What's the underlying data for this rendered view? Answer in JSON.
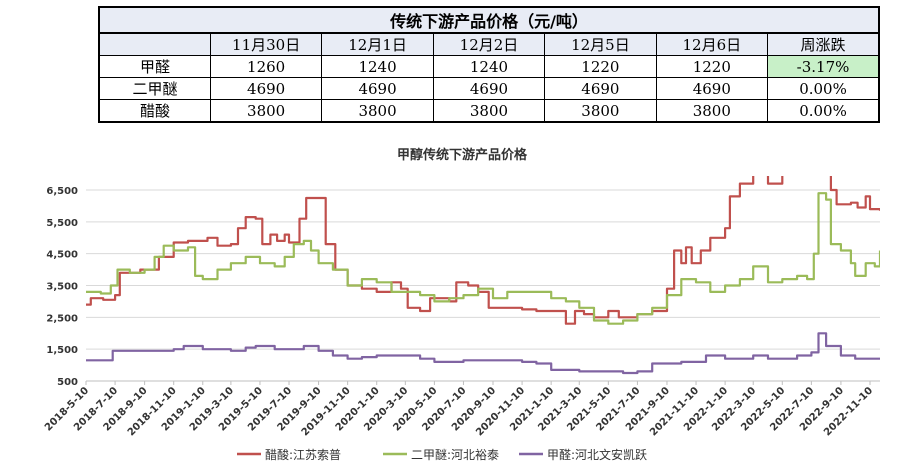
{
  "table": {
    "title": "传统下游产品价格（元/吨）",
    "header": [
      "",
      "11月30日",
      "12月1日",
      "12月2日",
      "12月5日",
      "12月6日",
      "周涨跌"
    ],
    "rows": [
      [
        "甲醛",
        "1260",
        "1240",
        "1240",
        "1220",
        "1220",
        "-3.17%"
      ],
      [
        "二甲醚",
        "4690",
        "4690",
        "4690",
        "4690",
        "4690",
        "0.00%"
      ],
      [
        "醋酸",
        "3800",
        "3800",
        "3800",
        "3800",
        "3800",
        "0.00%"
      ]
    ]
  },
  "chart_data": {
    "type": "line",
    "title": "甲醇传统下游产品价格",
    "ylim": [
      500,
      6500
    ],
    "yticks": [
      "500",
      "1,500",
      "2,500",
      "3,500",
      "4,500",
      "5,500",
      "6,500"
    ],
    "xlim": [
      "2018-05-10",
      "2022-12-01"
    ],
    "xticks": [
      "2018-5-10",
      "2018-7-10",
      "2018-9-10",
      "2018-11-10",
      "2019-1-10",
      "2019-3-10",
      "2019-5-10",
      "2019-7-10",
      "2019-9-10",
      "2019-11-10",
      "2020-1-10",
      "2020-3-10",
      "2020-5-10",
      "2020-7-10",
      "2020-9-10",
      "2020-11-10",
      "2021-1-10",
      "2021-3-10",
      "2021-5-10",
      "2021-7-10",
      "2021-9-10",
      "2021-11-10",
      "2022-1-10",
      "2022-3-10",
      "2022-5-10",
      "2022-7-10",
      "2022-9-10",
      "2022-11-10"
    ],
    "grid": "horizontal",
    "legend_position": "bottom",
    "series": [
      {
        "name": "醋酸:江苏索普",
        "color": "#c0504d",
        "points": [
          [
            "2018-05-10",
            2900
          ],
          [
            "2018-05-20",
            3100
          ],
          [
            "2018-06-15",
            3050
          ],
          [
            "2018-07-10",
            3200
          ],
          [
            "2018-07-20",
            3900
          ],
          [
            "2018-09-01",
            4000
          ],
          [
            "2018-10-10",
            4400
          ],
          [
            "2018-11-10",
            4850
          ],
          [
            "2018-12-10",
            4900
          ],
          [
            "2019-01-01",
            4900
          ],
          [
            "2019-01-20",
            5000
          ],
          [
            "2019-02-10",
            4750
          ],
          [
            "2019-03-10",
            4800
          ],
          [
            "2019-03-25",
            5300
          ],
          [
            "2019-04-10",
            5650
          ],
          [
            "2019-05-01",
            5600
          ],
          [
            "2019-05-15",
            4800
          ],
          [
            "2019-06-01",
            5100
          ],
          [
            "2019-06-15",
            4900
          ],
          [
            "2019-07-01",
            5100
          ],
          [
            "2019-07-10",
            4850
          ],
          [
            "2019-08-01",
            5600
          ],
          [
            "2019-08-15",
            6250
          ],
          [
            "2019-09-20",
            6250
          ],
          [
            "2019-09-25",
            4800
          ],
          [
            "2019-10-15",
            4000
          ],
          [
            "2019-11-10",
            3500
          ],
          [
            "2019-12-10",
            3400
          ],
          [
            "2020-01-10",
            3300
          ],
          [
            "2020-02-10",
            3600
          ],
          [
            "2020-03-01",
            3400
          ],
          [
            "2020-03-15",
            2800
          ],
          [
            "2020-04-10",
            2700
          ],
          [
            "2020-05-01",
            3100
          ],
          [
            "2020-06-10",
            3000
          ],
          [
            "2020-06-25",
            3600
          ],
          [
            "2020-07-20",
            3500
          ],
          [
            "2020-08-10",
            3300
          ],
          [
            "2020-09-01",
            2800
          ],
          [
            "2020-10-10",
            2800
          ],
          [
            "2020-11-10",
            2750
          ],
          [
            "2020-12-10",
            2700
          ],
          [
            "2021-01-10",
            2700
          ],
          [
            "2021-02-10",
            2300
          ],
          [
            "2021-03-01",
            2700
          ],
          [
            "2021-03-20",
            2600
          ],
          [
            "2021-04-10",
            2500
          ],
          [
            "2021-05-10",
            2700
          ],
          [
            "2021-06-01",
            2500
          ],
          [
            "2021-07-10",
            2600
          ],
          [
            "2021-08-10",
            2700
          ],
          [
            "2021-09-10",
            3400
          ],
          [
            "2021-09-25",
            4600
          ],
          [
            "2021-10-10",
            4200
          ],
          [
            "2021-10-20",
            4700
          ],
          [
            "2021-11-01",
            4200
          ],
          [
            "2021-11-20",
            4600
          ],
          [
            "2021-12-10",
            5000
          ],
          [
            "2022-01-10",
            5300
          ],
          [
            "2022-01-20",
            6300
          ],
          [
            "2022-02-10",
            6700
          ],
          [
            "2022-03-10",
            7000
          ],
          [
            "2022-04-10",
            6700
          ],
          [
            "2022-05-10",
            7000
          ],
          [
            "2022-06-10",
            7000
          ],
          [
            "2022-07-10",
            7000
          ],
          [
            "2022-08-01",
            7200
          ],
          [
            "2022-08-20",
            6500
          ],
          [
            "2022-09-01",
            6050
          ],
          [
            "2022-10-01",
            6100
          ],
          [
            "2022-10-15",
            5950
          ],
          [
            "2022-11-01",
            6300
          ],
          [
            "2022-11-10",
            5900
          ],
          [
            "2022-12-01",
            5850
          ]
        ]
      },
      {
        "name": "二甲醚:河北裕泰",
        "color": "#9bbb59",
        "points": [
          [
            "2018-05-10",
            3300
          ],
          [
            "2018-06-10",
            3250
          ],
          [
            "2018-07-01",
            3500
          ],
          [
            "2018-07-15",
            4000
          ],
          [
            "2018-08-10",
            3900
          ],
          [
            "2018-09-10",
            4000
          ],
          [
            "2018-10-01",
            4400
          ],
          [
            "2018-10-20",
            4750
          ],
          [
            "2018-11-10",
            4600
          ],
          [
            "2018-12-10",
            4700
          ],
          [
            "2018-12-25",
            3800
          ],
          [
            "2019-01-10",
            3700
          ],
          [
            "2019-02-10",
            4000
          ],
          [
            "2019-03-10",
            4200
          ],
          [
            "2019-04-10",
            4400
          ],
          [
            "2019-05-10",
            4200
          ],
          [
            "2019-06-10",
            4100
          ],
          [
            "2019-07-01",
            4400
          ],
          [
            "2019-07-20",
            4800
          ],
          [
            "2019-08-10",
            4900
          ],
          [
            "2019-08-25",
            4600
          ],
          [
            "2019-09-10",
            4200
          ],
          [
            "2019-10-10",
            4000
          ],
          [
            "2019-11-10",
            3500
          ],
          [
            "2019-12-10",
            3700
          ],
          [
            "2020-01-10",
            3600
          ],
          [
            "2020-02-10",
            3300
          ],
          [
            "2020-03-10",
            3300
          ],
          [
            "2020-04-10",
            3200
          ],
          [
            "2020-05-10",
            3000
          ],
          [
            "2020-06-10",
            3100
          ],
          [
            "2020-07-10",
            3200
          ],
          [
            "2020-08-10",
            3400
          ],
          [
            "2020-09-10",
            3100
          ],
          [
            "2020-10-10",
            3300
          ],
          [
            "2020-11-10",
            3300
          ],
          [
            "2020-12-10",
            3300
          ],
          [
            "2021-01-10",
            3100
          ],
          [
            "2021-02-10",
            3000
          ],
          [
            "2021-03-10",
            2800
          ],
          [
            "2021-04-10",
            2400
          ],
          [
            "2021-05-10",
            2300
          ],
          [
            "2021-06-10",
            2400
          ],
          [
            "2021-07-10",
            2600
          ],
          [
            "2021-08-10",
            2800
          ],
          [
            "2021-09-10",
            3200
          ],
          [
            "2021-10-10",
            3700
          ],
          [
            "2021-11-10",
            3600
          ],
          [
            "2021-12-10",
            3300
          ],
          [
            "2022-01-10",
            3500
          ],
          [
            "2022-02-10",
            3700
          ],
          [
            "2022-03-10",
            4100
          ],
          [
            "2022-04-10",
            3600
          ],
          [
            "2022-05-10",
            3700
          ],
          [
            "2022-06-10",
            3800
          ],
          [
            "2022-07-01",
            3700
          ],
          [
            "2022-07-15",
            4500
          ],
          [
            "2022-07-25",
            6400
          ],
          [
            "2022-08-10",
            6200
          ],
          [
            "2022-08-20",
            4800
          ],
          [
            "2022-09-10",
            4600
          ],
          [
            "2022-10-01",
            4200
          ],
          [
            "2022-10-10",
            3800
          ],
          [
            "2022-11-01",
            4200
          ],
          [
            "2022-11-20",
            4100
          ],
          [
            "2022-12-01",
            4600
          ]
        ]
      },
      {
        "name": "甲醛:河北文安凯跃",
        "color": "#8064a2",
        "points": [
          [
            "2018-05-10",
            1150
          ],
          [
            "2018-06-10",
            1150
          ],
          [
            "2018-07-01",
            1150
          ],
          [
            "2018-07-05",
            1450
          ],
          [
            "2018-09-10",
            1450
          ],
          [
            "2018-11-10",
            1500
          ],
          [
            "2018-12-01",
            1600
          ],
          [
            "2019-01-10",
            1500
          ],
          [
            "2019-03-10",
            1450
          ],
          [
            "2019-04-10",
            1550
          ],
          [
            "2019-05-01",
            1600
          ],
          [
            "2019-06-10",
            1500
          ],
          [
            "2019-07-10",
            1500
          ],
          [
            "2019-08-10",
            1600
          ],
          [
            "2019-09-10",
            1450
          ],
          [
            "2019-10-10",
            1300
          ],
          [
            "2019-11-10",
            1200
          ],
          [
            "2019-12-10",
            1250
          ],
          [
            "2020-01-10",
            1300
          ],
          [
            "2020-03-10",
            1300
          ],
          [
            "2020-04-10",
            1200
          ],
          [
            "2020-05-10",
            1100
          ],
          [
            "2020-07-10",
            1150
          ],
          [
            "2020-09-10",
            1150
          ],
          [
            "2020-11-10",
            1100
          ],
          [
            "2020-12-10",
            1050
          ],
          [
            "2021-01-10",
            850
          ],
          [
            "2021-03-10",
            800
          ],
          [
            "2021-05-10",
            800
          ],
          [
            "2021-06-10",
            750
          ],
          [
            "2021-07-10",
            800
          ],
          [
            "2021-08-10",
            1050
          ],
          [
            "2021-09-10",
            1050
          ],
          [
            "2021-10-10",
            1100
          ],
          [
            "2021-11-10",
            1100
          ],
          [
            "2021-12-01",
            1300
          ],
          [
            "2022-01-10",
            1200
          ],
          [
            "2022-02-10",
            1200
          ],
          [
            "2022-03-10",
            1300
          ],
          [
            "2022-04-10",
            1200
          ],
          [
            "2022-05-10",
            1200
          ],
          [
            "2022-06-10",
            1300
          ],
          [
            "2022-07-10",
            1400
          ],
          [
            "2022-07-25",
            2000
          ],
          [
            "2022-08-10",
            1600
          ],
          [
            "2022-09-10",
            1300
          ],
          [
            "2022-10-10",
            1200
          ],
          [
            "2022-11-10",
            1200
          ],
          [
            "2022-12-01",
            1200
          ]
        ]
      }
    ]
  }
}
